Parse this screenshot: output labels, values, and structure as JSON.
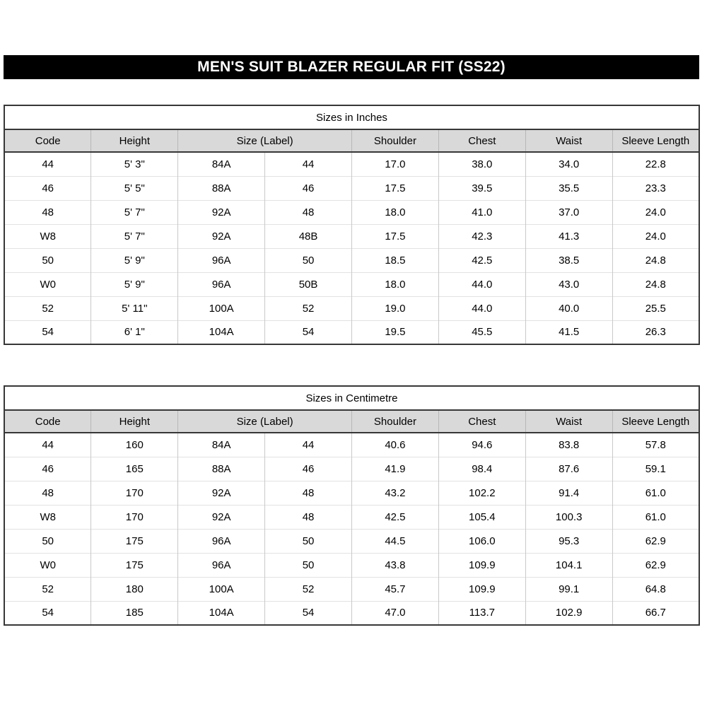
{
  "title_bar": {
    "text": "MEN'S SUIT BLAZER REGULAR FIT (SS22)"
  },
  "colors": {
    "title_bar_bg": "#000000",
    "title_bar_text": "#ffffff",
    "header_row_bg": "#d9d9d9",
    "outer_border": "#373737"
  },
  "tables": [
    {
      "caption": "Sizes in Inches",
      "headers": [
        {
          "label": "Code",
          "span": 1
        },
        {
          "label": "Height",
          "span": 1
        },
        {
          "label": "Size (Label)",
          "span": 2
        },
        {
          "label": "Shoulder",
          "span": 1
        },
        {
          "label": "Chest",
          "span": 1
        },
        {
          "label": "Waist",
          "span": 1
        },
        {
          "label": "Sleeve Length",
          "span": 1
        }
      ],
      "rows": [
        [
          "44",
          "5' 3\"",
          "84A",
          "44",
          "17.0",
          "38.0",
          "34.0",
          "22.8"
        ],
        [
          "46",
          "5' 5\"",
          "88A",
          "46",
          "17.5",
          "39.5",
          "35.5",
          "23.3"
        ],
        [
          "48",
          "5' 7\"",
          "92A",
          "48",
          "18.0",
          "41.0",
          "37.0",
          "24.0"
        ],
        [
          "W8",
          "5' 7\"",
          "92A",
          "48B",
          "17.5",
          "42.3",
          "41.3",
          "24.0"
        ],
        [
          "50",
          "5' 9\"",
          "96A",
          "50",
          "18.5",
          "42.5",
          "38.5",
          "24.8"
        ],
        [
          "W0",
          "5' 9\"",
          "96A",
          "50B",
          "18.0",
          "44.0",
          "43.0",
          "24.8"
        ],
        [
          "52",
          "5' 11\"",
          "100A",
          "52",
          "19.0",
          "44.0",
          "40.0",
          "25.5"
        ],
        [
          "54",
          "6' 1\"",
          "104A",
          "54",
          "19.5",
          "45.5",
          "41.5",
          "26.3"
        ]
      ]
    },
    {
      "caption": "Sizes in Centimetre",
      "headers": [
        {
          "label": "Code",
          "span": 1
        },
        {
          "label": "Height",
          "span": 1
        },
        {
          "label": "Size (Label)",
          "span": 2
        },
        {
          "label": "Shoulder",
          "span": 1
        },
        {
          "label": "Chest",
          "span": 1
        },
        {
          "label": "Waist",
          "span": 1
        },
        {
          "label": "Sleeve Length",
          "span": 1
        }
      ],
      "rows": [
        [
          "44",
          "160",
          "84A",
          "44",
          "40.6",
          "94.6",
          "83.8",
          "57.8"
        ],
        [
          "46",
          "165",
          "88A",
          "46",
          "41.9",
          "98.4",
          "87.6",
          "59.1"
        ],
        [
          "48",
          "170",
          "92A",
          "48",
          "43.2",
          "102.2",
          "91.4",
          "61.0"
        ],
        [
          "W8",
          "170",
          "92A",
          "48",
          "42.5",
          "105.4",
          "100.3",
          "61.0"
        ],
        [
          "50",
          "175",
          "96A",
          "50",
          "44.5",
          "106.0",
          "95.3",
          "62.9"
        ],
        [
          "W0",
          "175",
          "96A",
          "50",
          "43.8",
          "109.9",
          "104.1",
          "62.9"
        ],
        [
          "52",
          "180",
          "100A",
          "52",
          "45.7",
          "109.9",
          "99.1",
          "64.8"
        ],
        [
          "54",
          "185",
          "104A",
          "54",
          "47.0",
          "113.7",
          "102.9",
          "66.7"
        ]
      ]
    }
  ]
}
